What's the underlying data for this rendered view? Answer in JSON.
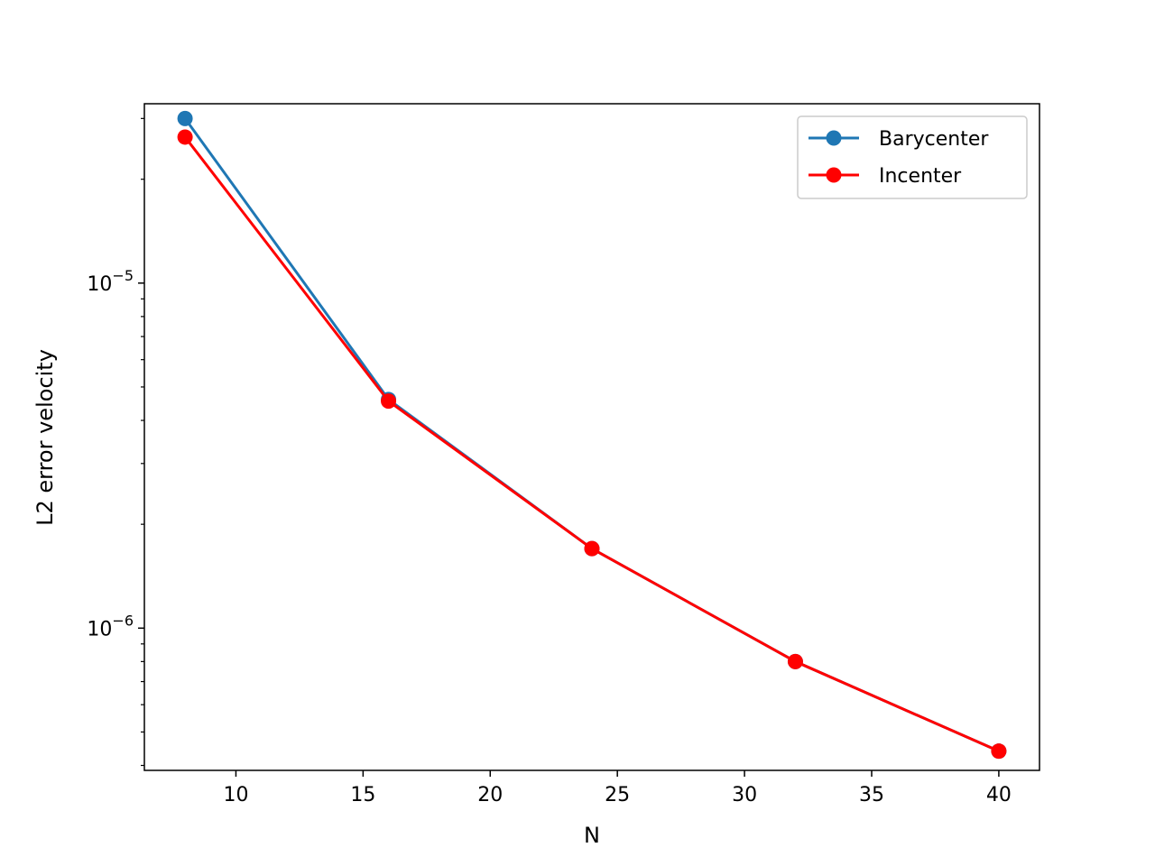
{
  "chart_data": {
    "type": "line",
    "xlabel": "N",
    "ylabel": "L2 error velocity",
    "xlim": [
      6.4,
      41.6
    ],
    "ylim": [
      3.87e-07,
      3.31e-05
    ],
    "y_scale": "log",
    "x_ticks": [
      10,
      15,
      20,
      25,
      30,
      35,
      40
    ],
    "y_major_ticks": [
      {
        "value": 1e-06,
        "label_base": "10",
        "label_exp": "−6"
      },
      {
        "value": 1e-05,
        "label_base": "10",
        "label_exp": "−5"
      }
    ],
    "grid": false,
    "legend_position": "top-right",
    "x": [
      8,
      16,
      24,
      32,
      40
    ],
    "series": [
      {
        "name": "Barycenter",
        "color": "#1f77b4",
        "marker": "circle",
        "values": [
          3e-05,
          4.6e-06,
          1.7e-06,
          8e-07,
          4.4e-07
        ]
      },
      {
        "name": "Incenter",
        "color": "#ff0000",
        "marker": "circle",
        "values": [
          2.65e-05,
          4.55e-06,
          1.7e-06,
          8e-07,
          4.4e-07
        ]
      }
    ]
  }
}
